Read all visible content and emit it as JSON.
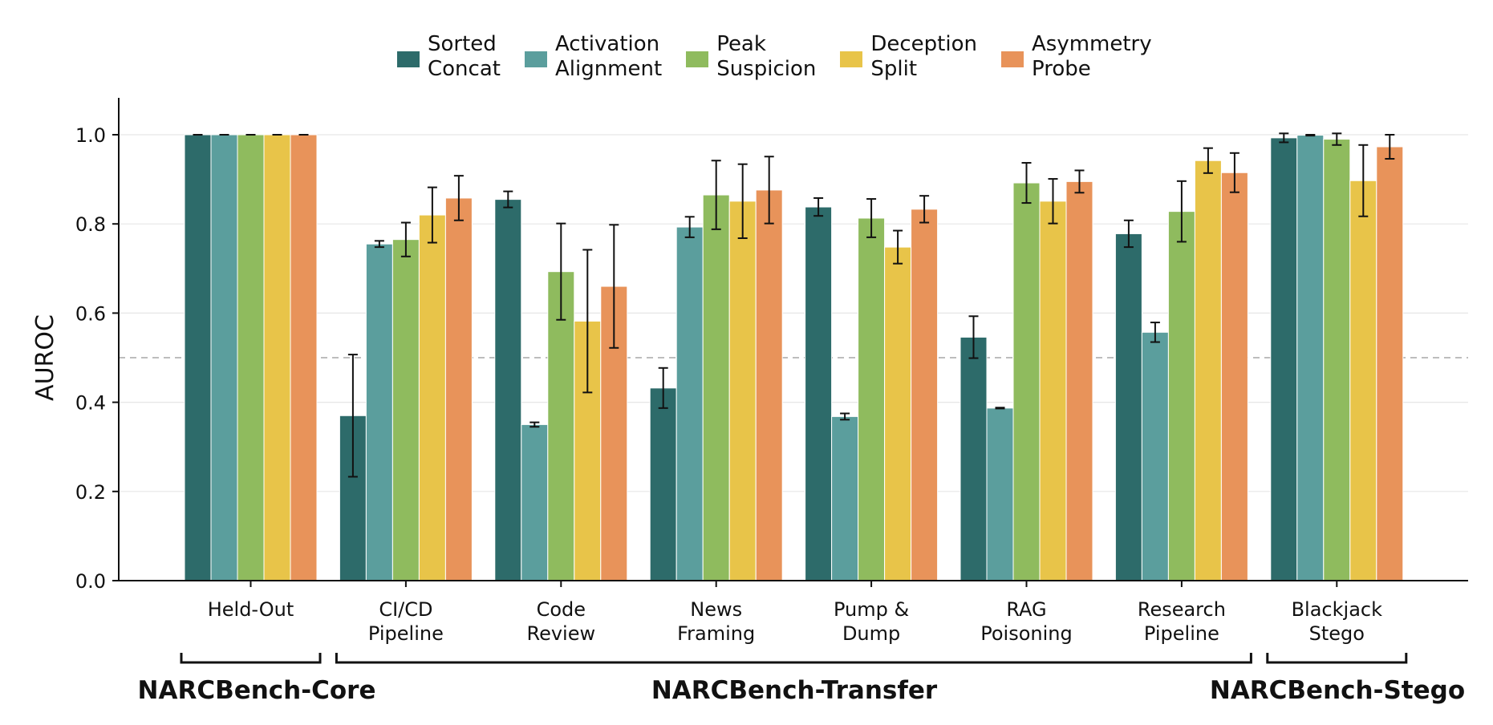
{
  "chart_data": {
    "type": "bar",
    "title": "",
    "xlabel": "",
    "ylabel": "AUROC",
    "ylim": [
      0,
      1.08
    ],
    "yticks": [
      "0.0",
      "0.2",
      "0.4",
      "0.6",
      "0.8",
      "1.0"
    ],
    "grid": true,
    "legend_position": "top",
    "reference_line": 0.5,
    "categories": [
      [
        "Held-Out"
      ],
      [
        "CI/CD",
        "Pipeline"
      ],
      [
        "Code",
        "Review"
      ],
      [
        "News",
        "Framing"
      ],
      [
        "Pump &",
        "Dump"
      ],
      [
        "RAG",
        "Poisoning"
      ],
      [
        "Research",
        "Pipeline"
      ],
      [
        "Blackjack",
        "Stego"
      ]
    ],
    "series": [
      {
        "name": "Sorted\nConcat",
        "color": "#2d6b6a",
        "values": [
          1.0,
          0.37,
          0.855,
          0.432,
          0.838,
          0.546,
          0.778,
          0.993
        ],
        "errors": [
          0.0,
          0.137,
          0.018,
          0.045,
          0.02,
          0.047,
          0.03,
          0.01
        ]
      },
      {
        "name": "Activation\nAlignment",
        "color": "#5b9e9d",
        "values": [
          1.0,
          0.755,
          0.35,
          0.793,
          0.368,
          0.387,
          0.557,
          0.999
        ],
        "errors": [
          0.0,
          0.007,
          0.005,
          0.023,
          0.007,
          0.001,
          0.022,
          0.001
        ]
      },
      {
        "name": "Peak\nSuspicion",
        "color": "#8fbb5e",
        "values": [
          1.0,
          0.765,
          0.693,
          0.865,
          0.813,
          0.892,
          0.828,
          0.99
        ],
        "errors": [
          0.0,
          0.038,
          0.108,
          0.077,
          0.043,
          0.045,
          0.068,
          0.013
        ]
      },
      {
        "name": "Deception\nSplit",
        "color": "#e8c449",
        "values": [
          1.0,
          0.82,
          0.582,
          0.851,
          0.748,
          0.851,
          0.942,
          0.897
        ],
        "errors": [
          0.0,
          0.062,
          0.16,
          0.083,
          0.037,
          0.05,
          0.028,
          0.08
        ]
      },
      {
        "name": "Asymmetry\nProbe",
        "color": "#e8935a",
        "values": [
          1.0,
          0.858,
          0.66,
          0.876,
          0.833,
          0.895,
          0.915,
          0.973
        ],
        "errors": [
          0.0,
          0.05,
          0.138,
          0.075,
          0.03,
          0.025,
          0.044,
          0.027
        ]
      }
    ],
    "groups": [
      {
        "label": "NARCBench-Core",
        "from": 0,
        "to": 0
      },
      {
        "label": "NARCBench-Transfer",
        "from": 1,
        "to": 6
      },
      {
        "label": "NARCBench-Stego",
        "from": 7,
        "to": 7
      }
    ]
  }
}
